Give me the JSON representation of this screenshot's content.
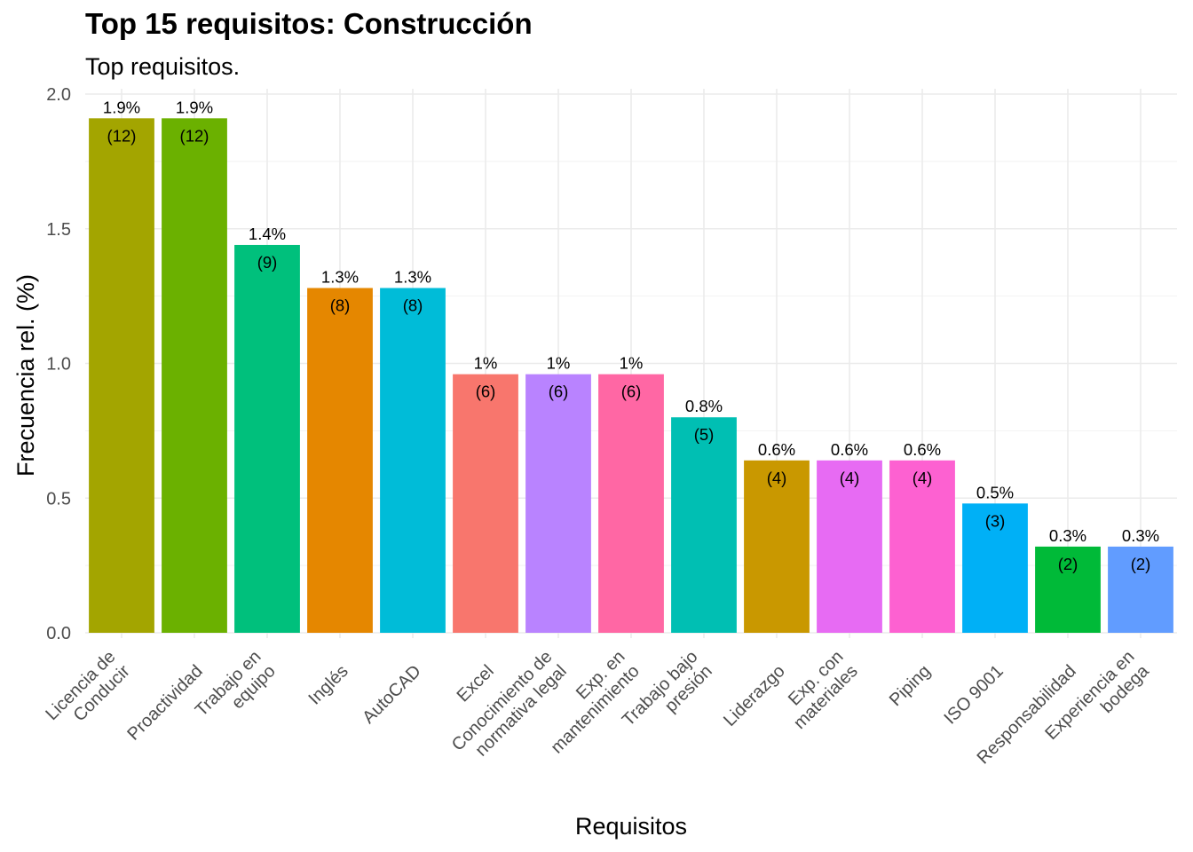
{
  "chart_data": {
    "type": "bar",
    "title": "Top 15 requisitos: Construcción",
    "subtitle": "Top requisitos.",
    "xlabel": "Requisitos",
    "ylabel": "Frecuencia rel. (%)",
    "ylim": [
      0,
      2.0
    ],
    "yticks": [
      "0.0",
      "0.5",
      "1.0",
      "1.5",
      "2.0"
    ],
    "grid": true,
    "categories": [
      "Licencia de\nConducir",
      "Proactividad",
      "Trabajo en\nequipo",
      "Inglés",
      "AutoCAD",
      "Excel",
      "Conocimiento de\nnormativa legal",
      "Exp. en\nmantenimiento",
      "Trabajo bajo\npresión",
      "Liderazgo",
      "Exp. con\nmateriales",
      "Piping",
      "ISO 9001",
      "Responsabilidad",
      "Experiencia en\nbodega"
    ],
    "values": [
      1.91,
      1.91,
      1.44,
      1.28,
      1.28,
      0.96,
      0.96,
      0.96,
      0.8,
      0.64,
      0.64,
      0.64,
      0.48,
      0.32,
      0.32
    ],
    "pct_labels": [
      "1.9%",
      "1.9%",
      "1.4%",
      "1.3%",
      "1.3%",
      "1%",
      "1%",
      "1%",
      "0.8%",
      "0.6%",
      "0.6%",
      "0.6%",
      "0.5%",
      "0.3%",
      "0.3%"
    ],
    "count_labels": [
      "(12)",
      "(12)",
      "(9)",
      "(8)",
      "(8)",
      "(6)",
      "(6)",
      "(6)",
      "(5)",
      "(4)",
      "(4)",
      "(4)",
      "(3)",
      "(2)",
      "(2)"
    ],
    "colors": [
      "#A3A500",
      "#6BB100",
      "#00C07C",
      "#E58700",
      "#00BCD8",
      "#F8766D",
      "#B983FF",
      "#FF67A4",
      "#00BFB3",
      "#C99800",
      "#E76BF3",
      "#FD61D1",
      "#00B0F6",
      "#00BA38",
      "#619CFF"
    ]
  }
}
